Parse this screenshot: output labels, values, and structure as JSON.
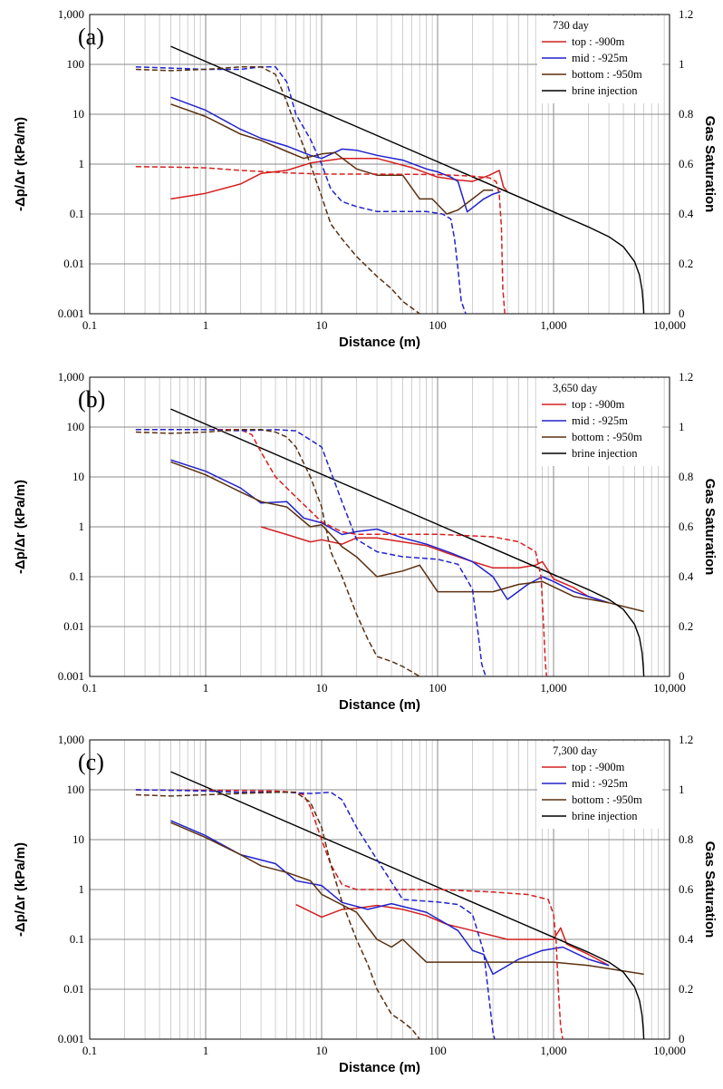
{
  "figure": {
    "type": "multi-panel log-log line chart"
  },
  "chart_data": [
    {
      "panel": "(a)",
      "type": "line",
      "xlabel": "Distance (m)",
      "ylabel": "-Δp/Δr (kPa/m)",
      "y2label": "Gas Saturation",
      "xscale": "log",
      "yscale": "log",
      "xlim": [
        0.1,
        10000
      ],
      "ylim": [
        0.001,
        1000
      ],
      "y2lim": [
        0,
        1.2
      ],
      "xticks": [
        "0.1",
        "1",
        "10",
        "100",
        "1,000",
        "10,000"
      ],
      "yticks": [
        "1,000",
        "100",
        "10",
        "1",
        "0.1",
        "0.01",
        "0.001"
      ],
      "y2ticks": [
        "1.2",
        "1",
        "0.8",
        "0.6",
        "0.4",
        "0.2",
        "0"
      ],
      "legend_title": "730 day",
      "legend": [
        "top : -900m",
        "mid : -925m",
        "bottom : -950m",
        "brine injection"
      ],
      "series": [
        {
          "name": "top : -900m",
          "axis": "left",
          "style": "solid",
          "color": "#d42020",
          "x": [
            0.5,
            1,
            2,
            3,
            5,
            8,
            15,
            30,
            60,
            100,
            150,
            200,
            280,
            340,
            370,
            400
          ],
          "y": [
            0.2,
            0.26,
            0.4,
            0.65,
            0.75,
            1.05,
            1.3,
            1.3,
            0.85,
            0.55,
            0.48,
            0.45,
            0.6,
            0.75,
            0.35,
            0.28
          ]
        },
        {
          "name": "mid : -925m",
          "axis": "left",
          "style": "solid",
          "color": "#2222cc",
          "x": [
            0.5,
            1,
            2,
            3,
            5,
            8,
            10,
            15,
            20,
            30,
            50,
            80,
            100,
            130,
            150,
            180,
            250,
            300,
            350
          ],
          "y": [
            22,
            12,
            5,
            3.3,
            2.3,
            1.5,
            1.3,
            2.0,
            1.9,
            1.5,
            1.2,
            0.8,
            0.7,
            0.55,
            0.45,
            0.11,
            0.2,
            0.25,
            0.28
          ]
        },
        {
          "name": "bottom : -950m",
          "axis": "left",
          "style": "solid",
          "color": "#5a3010",
          "x": [
            0.5,
            1,
            2,
            3,
            5,
            7,
            10,
            13,
            20,
            30,
            40,
            50,
            70,
            90,
            120,
            150,
            200,
            250,
            300
          ],
          "y": [
            16,
            9,
            4,
            3,
            1.8,
            1.3,
            1.6,
            1.7,
            0.8,
            0.6,
            0.6,
            0.6,
            0.2,
            0.2,
            0.1,
            0.12,
            0.2,
            0.3,
            0.3
          ]
        },
        {
          "name": "brine injection",
          "axis": "left",
          "style": "solid",
          "color": "#000000",
          "x": [
            0.5,
            1000,
            2000,
            3000,
            4000,
            5000,
            5500,
            5800,
            5950,
            6000
          ],
          "y": [
            230,
            0.11,
            0.055,
            0.035,
            0.022,
            0.011,
            0.006,
            0.003,
            0.0015,
            0.001
          ]
        },
        {
          "name": "top : -900m (gas sat.)",
          "axis": "right",
          "style": "dashed",
          "color": "#d42020",
          "x": [
            0.25,
            0.5,
            1,
            2,
            5,
            10,
            30,
            100,
            200,
            280,
            320,
            340,
            355,
            365,
            380
          ],
          "y": [
            0.59,
            0.588,
            0.585,
            0.575,
            0.565,
            0.56,
            0.56,
            0.558,
            0.552,
            0.545,
            0.53,
            0.48,
            0.35,
            0.1,
            0
          ]
        },
        {
          "name": "mid : -925m (gas sat.)",
          "axis": "right",
          "style": "dashed",
          "color": "#2222cc",
          "x": [
            0.25,
            0.5,
            1,
            2,
            3,
            4,
            5,
            6,
            8,
            10,
            12,
            15,
            20,
            30,
            50,
            80,
            110,
            130,
            140,
            150,
            160,
            175
          ],
          "y": [
            0.99,
            0.985,
            0.98,
            0.98,
            0.99,
            0.99,
            0.93,
            0.8,
            0.7,
            0.6,
            0.5,
            0.45,
            0.43,
            0.41,
            0.41,
            0.41,
            0.4,
            0.38,
            0.3,
            0.18,
            0.05,
            0
          ]
        },
        {
          "name": "bottom : -950m (gas sat.)",
          "axis": "right",
          "style": "dashed",
          "color": "#5a3010",
          "x": [
            0.25,
            0.5,
            1,
            2,
            3,
            4,
            5,
            6,
            8,
            10,
            12,
            15,
            20,
            30,
            40,
            50,
            70
          ],
          "y": [
            0.98,
            0.975,
            0.98,
            0.99,
            0.99,
            0.96,
            0.85,
            0.75,
            0.6,
            0.47,
            0.36,
            0.3,
            0.23,
            0.15,
            0.1,
            0.05,
            0
          ]
        }
      ]
    },
    {
      "panel": "(b)",
      "type": "line",
      "xlabel": "Distance (m)",
      "ylabel": "-Δp/Δr (kPa/m)",
      "y2label": "Gas Saturation",
      "xscale": "log",
      "yscale": "log",
      "xlim": [
        0.1,
        10000
      ],
      "ylim": [
        0.001,
        1000
      ],
      "y2lim": [
        0,
        1.2
      ],
      "xticks": [
        "0.1",
        "1",
        "10",
        "100",
        "1,000",
        "10,000"
      ],
      "yticks": [
        "1,000",
        "100",
        "10",
        "1",
        "0.1",
        "0.01",
        "0.001"
      ],
      "y2ticks": [
        "1.2",
        "1",
        "0.8",
        "0.6",
        "0.4",
        "0.2",
        "0"
      ],
      "legend_title": "3,650 day",
      "legend": [
        "top : -900m",
        "mid : -925m",
        "bottom : -950m",
        "brine injection"
      ],
      "series": [
        {
          "name": "top : -900m",
          "axis": "left",
          "style": "solid",
          "color": "#d42020",
          "x": [
            3,
            5,
            8,
            10,
            15,
            20,
            30,
            50,
            80,
            120,
            200,
            300,
            500,
            700,
            800,
            1000,
            1500,
            2000,
            3000
          ],
          "y": [
            1.0,
            0.7,
            0.5,
            0.55,
            0.45,
            0.6,
            0.6,
            0.5,
            0.42,
            0.3,
            0.2,
            0.15,
            0.15,
            0.17,
            0.2,
            0.09,
            0.06,
            0.04,
            0.03
          ]
        },
        {
          "name": "mid : -925m",
          "axis": "left",
          "style": "solid",
          "color": "#2222cc",
          "x": [
            0.5,
            1,
            2,
            3,
            5,
            7,
            10,
            15,
            20,
            30,
            50,
            80,
            130,
            200,
            300,
            400,
            600,
            800,
            1000,
            1500,
            2000,
            3000
          ],
          "y": [
            22,
            13,
            6,
            3,
            3.2,
            1.5,
            1.2,
            0.7,
            0.8,
            0.9,
            0.6,
            0.45,
            0.3,
            0.2,
            0.1,
            0.035,
            0.07,
            0.1,
            0.08,
            0.05,
            0.04,
            0.03
          ]
        },
        {
          "name": "bottom : -950m",
          "axis": "left",
          "style": "solid",
          "color": "#5a3010",
          "x": [
            0.5,
            1,
            2,
            3,
            5,
            8,
            10,
            15,
            20,
            30,
            50,
            70,
            100,
            200,
            300,
            500,
            800,
            1500,
            3000,
            6000
          ],
          "y": [
            20,
            11,
            5,
            3.2,
            2.5,
            1.0,
            1.1,
            0.4,
            0.25,
            0.1,
            0.13,
            0.17,
            0.05,
            0.05,
            0.05,
            0.07,
            0.08,
            0.04,
            0.03,
            0.02
          ]
        },
        {
          "name": "brine injection",
          "axis": "left",
          "style": "solid",
          "color": "#000000",
          "x": [
            0.5,
            1000,
            2000,
            3000,
            4000,
            5000,
            5500,
            5800,
            5950,
            6000
          ],
          "y": [
            230,
            0.11,
            0.055,
            0.035,
            0.022,
            0.011,
            0.006,
            0.003,
            0.0015,
            0.001
          ]
        },
        {
          "name": "top : -900m (gas sat.)",
          "axis": "right",
          "style": "dashed",
          "color": "#d42020",
          "x": [
            0.25,
            0.5,
            1,
            2,
            2.5,
            3,
            4,
            6,
            10,
            15,
            20,
            50,
            100,
            300,
            500,
            700,
            780,
            820,
            850,
            870
          ],
          "y": [
            0.99,
            0.99,
            0.99,
            0.99,
            0.97,
            0.9,
            0.8,
            0.72,
            0.62,
            0.58,
            0.57,
            0.57,
            0.57,
            0.56,
            0.54,
            0.5,
            0.4,
            0.2,
            0.05,
            0
          ]
        },
        {
          "name": "mid : -925m (gas sat.)",
          "axis": "right",
          "style": "dashed",
          "color": "#2222cc",
          "x": [
            0.25,
            0.5,
            1,
            2,
            4,
            6,
            10,
            15,
            20,
            30,
            50,
            100,
            150,
            200,
            220,
            240,
            260
          ],
          "y": [
            0.99,
            0.99,
            0.99,
            0.985,
            0.99,
            0.985,
            0.92,
            0.7,
            0.55,
            0.5,
            0.48,
            0.47,
            0.45,
            0.35,
            0.2,
            0.05,
            0
          ]
        },
        {
          "name": "bottom : -950m (gas sat.)",
          "axis": "right",
          "style": "dashed",
          "color": "#5a3010",
          "x": [
            0.25,
            0.5,
            1,
            2,
            3,
            4,
            5,
            6,
            8,
            10,
            12,
            15,
            20,
            25,
            30,
            40,
            50,
            70
          ],
          "y": [
            0.98,
            0.975,
            0.98,
            0.99,
            0.99,
            0.98,
            0.96,
            0.92,
            0.8,
            0.68,
            0.5,
            0.4,
            0.25,
            0.15,
            0.08,
            0.06,
            0.04,
            0
          ]
        }
      ]
    },
    {
      "panel": "(c)",
      "type": "line",
      "xlabel": "Distance (m)",
      "ylabel": "-Δp/Δr (kPa/m)",
      "y2label": "Gas Saturation",
      "xscale": "log",
      "yscale": "log",
      "xlim": [
        0.1,
        10000
      ],
      "ylim": [
        0.001,
        1000
      ],
      "y2lim": [
        0,
        1.2
      ],
      "xticks": [
        "0.1",
        "1",
        "10",
        "100",
        "1,000",
        "10,000"
      ],
      "yticks": [
        "1,000",
        "100",
        "10",
        "1",
        "0.1",
        "0.01",
        "0.001"
      ],
      "y2ticks": [
        "1.2",
        "1",
        "0.8",
        "0.6",
        "0.4",
        "0.2",
        "0"
      ],
      "legend_title": "7,300 day",
      "legend": [
        "top : -900m",
        "mid : -925m",
        "bottom : -950m",
        "brine injection"
      ],
      "series": [
        {
          "name": "top : -900m",
          "axis": "left",
          "style": "solid",
          "color": "#d42020",
          "x": [
            6,
            10,
            15,
            20,
            30,
            50,
            80,
            120,
            200,
            400,
            700,
            1000,
            1150,
            1300,
            2000,
            3000
          ],
          "y": [
            0.5,
            0.28,
            0.4,
            0.42,
            0.48,
            0.4,
            0.3,
            0.2,
            0.15,
            0.1,
            0.1,
            0.1,
            0.17,
            0.08,
            0.05,
            0.03
          ]
        },
        {
          "name": "mid : -925m",
          "axis": "left",
          "style": "solid",
          "color": "#2222cc",
          "x": [
            0.5,
            1,
            2,
            4,
            6,
            10,
            15,
            25,
            40,
            80,
            150,
            200,
            250,
            300,
            500,
            800,
            1200,
            2000,
            3000
          ],
          "y": [
            24,
            12,
            5,
            3.3,
            1.5,
            1.2,
            0.55,
            0.4,
            0.52,
            0.35,
            0.15,
            0.06,
            0.05,
            0.02,
            0.04,
            0.06,
            0.07,
            0.04,
            0.03
          ]
        },
        {
          "name": "bottom : -950m",
          "axis": "left",
          "style": "solid",
          "color": "#5a3010",
          "x": [
            0.5,
            1,
            2,
            3,
            5,
            8,
            10,
            20,
            30,
            40,
            50,
            80,
            200,
            500,
            1000,
            2000,
            6000
          ],
          "y": [
            22,
            11,
            5,
            3,
            2.2,
            1.5,
            0.8,
            0.35,
            0.1,
            0.07,
            0.1,
            0.035,
            0.035,
            0.035,
            0.035,
            0.03,
            0.02
          ]
        },
        {
          "name": "brine injection",
          "axis": "left",
          "style": "solid",
          "color": "#000000",
          "x": [
            0.5,
            1000,
            2000,
            3000,
            4000,
            5000,
            5500,
            5800,
            5950,
            6000
          ],
          "y": [
            230,
            0.11,
            0.055,
            0.035,
            0.022,
            0.011,
            0.006,
            0.003,
            0.0015,
            0.001
          ]
        },
        {
          "name": "top : -900m (gas sat.)",
          "axis": "right",
          "style": "dashed",
          "color": "#d42020",
          "x": [
            0.25,
            0.5,
            1,
            2,
            4,
            6,
            7,
            8,
            10,
            12,
            15,
            20,
            50,
            100,
            300,
            600,
            900,
            1000,
            1050,
            1100,
            1150,
            1200
          ],
          "y": [
            1.0,
            0.998,
            0.998,
            0.997,
            0.995,
            0.99,
            0.98,
            0.93,
            0.8,
            0.7,
            0.62,
            0.6,
            0.6,
            0.6,
            0.59,
            0.58,
            0.56,
            0.5,
            0.4,
            0.2,
            0.05,
            0
          ]
        },
        {
          "name": "mid : -925m (gas sat.)",
          "axis": "right",
          "style": "dashed",
          "color": "#2222cc",
          "x": [
            0.25,
            0.5,
            1,
            2,
            5,
            8,
            12,
            15,
            20,
            30,
            50,
            100,
            150,
            200,
            250,
            280,
            300,
            310
          ],
          "y": [
            1.0,
            0.998,
            0.995,
            0.99,
            0.99,
            0.985,
            0.99,
            0.96,
            0.85,
            0.72,
            0.56,
            0.55,
            0.54,
            0.5,
            0.35,
            0.15,
            0.03,
            0
          ]
        },
        {
          "name": "bottom : -950m (gas sat.)",
          "axis": "right",
          "style": "dashed",
          "color": "#5a3010",
          "x": [
            0.25,
            0.5,
            1,
            2,
            4,
            6,
            8,
            10,
            12,
            15,
            20,
            25,
            30,
            40,
            50,
            60,
            70
          ],
          "y": [
            0.98,
            0.975,
            0.98,
            0.985,
            0.99,
            0.99,
            0.95,
            0.85,
            0.7,
            0.55,
            0.4,
            0.3,
            0.2,
            0.1,
            0.07,
            0.04,
            0
          ]
        }
      ]
    }
  ]
}
